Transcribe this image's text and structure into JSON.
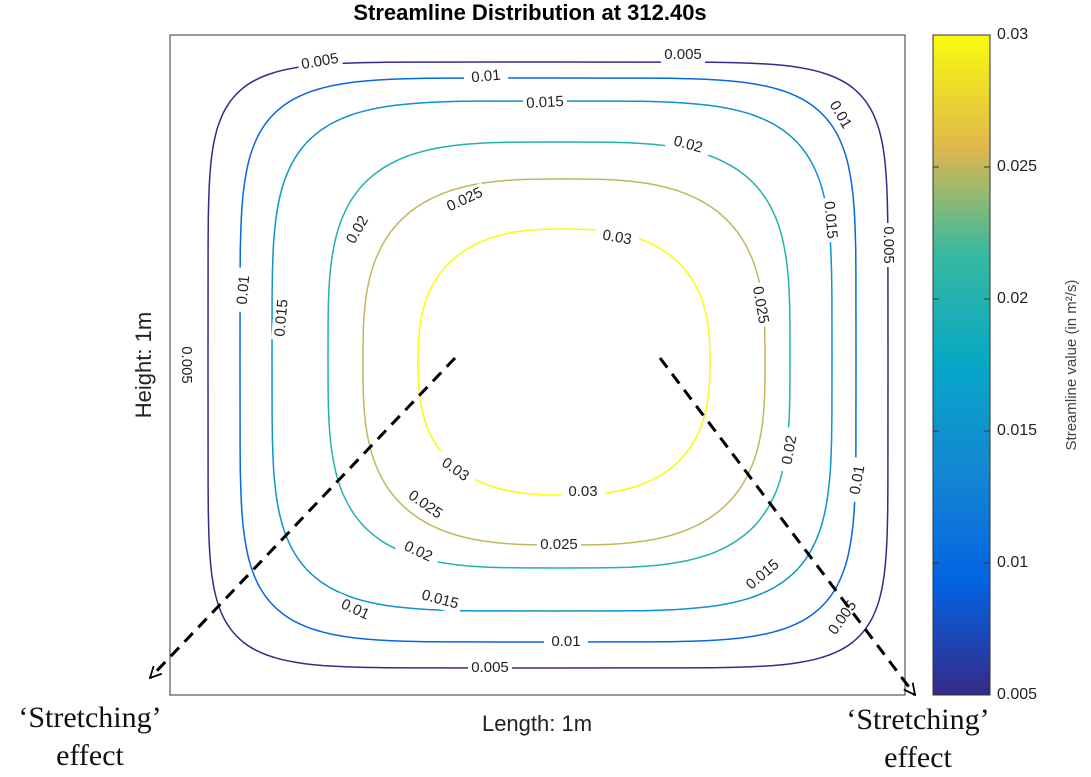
{
  "chart_data": {
    "type": "contour",
    "title": "Streamline Distribution at 312.40s",
    "x_label": "Length: 1m",
    "y_label": "Height: 1m",
    "colorbar_label": "Streamline value (in m²/s)",
    "colormap": "parula",
    "clim": [
      0.005,
      0.03
    ],
    "cticks": [
      0.005,
      0.01,
      0.015,
      0.02,
      0.025,
      0.03
    ],
    "levels": [
      0.005,
      0.01,
      0.015,
      0.02,
      0.025,
      0.03
    ],
    "annotations": [
      {
        "lines": [
          "‘Stretching’",
          "effect"
        ]
      },
      {
        "lines": [
          "‘Stretching’",
          "effect"
        ]
      }
    ]
  }
}
